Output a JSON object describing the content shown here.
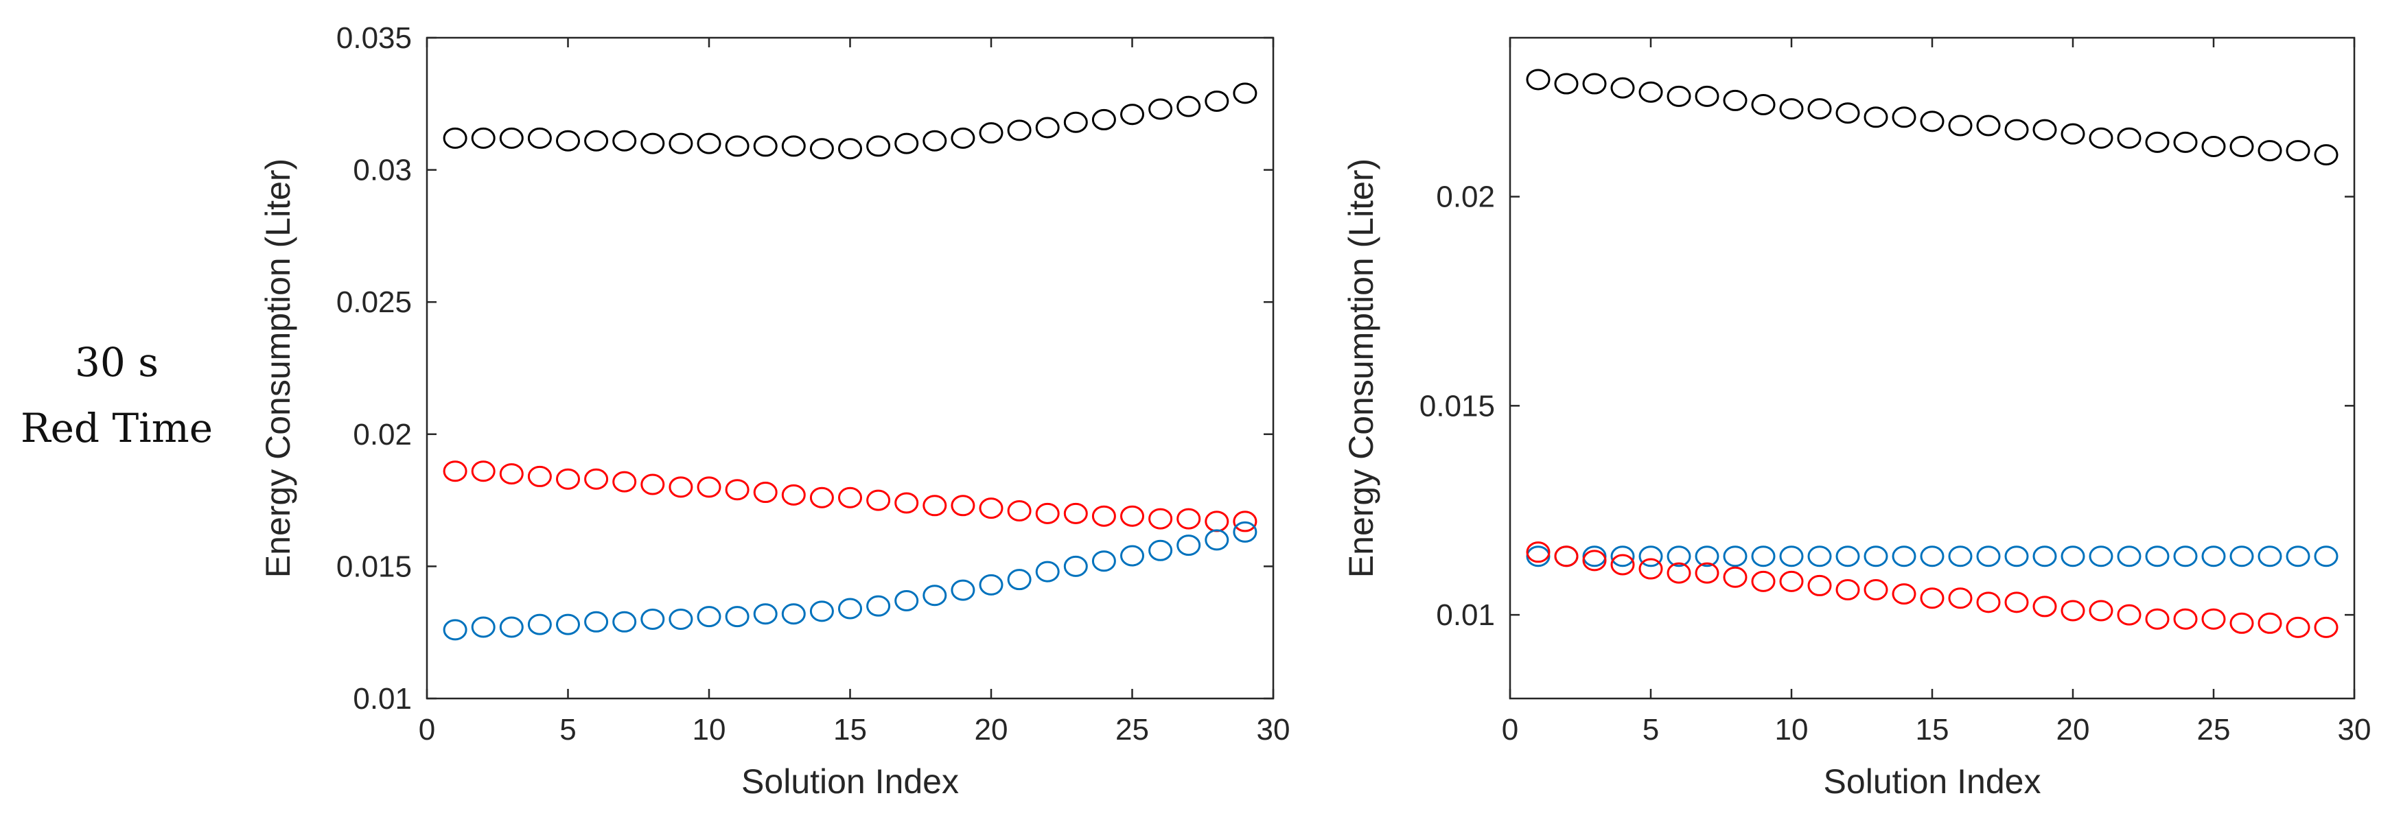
{
  "row_label": {
    "line1": "30 s",
    "line2": "Red Time"
  },
  "colors": {
    "black_series": "#000000",
    "red_series": "#ff0000",
    "blue_series": "#0072bd",
    "axis": "#262626"
  },
  "chart_data": [
    {
      "type": "scatter",
      "title": "",
      "xlabel": "Solution Index",
      "ylabel": "Energy Consumption (Liter)",
      "xlim": [
        0,
        30
      ],
      "ylim": [
        0.01,
        0.035
      ],
      "xticks": [
        0,
        5,
        10,
        15,
        20,
        25,
        30
      ],
      "yticks": [
        0.01,
        0.015,
        0.02,
        0.025,
        0.03,
        0.035
      ],
      "ytick_labels": [
        "0.01",
        "0.015",
        "0.02",
        "0.025",
        "0.03",
        "0.035"
      ],
      "marker": "open-circle",
      "x": [
        1,
        2,
        3,
        4,
        5,
        6,
        7,
        8,
        9,
        10,
        11,
        12,
        13,
        14,
        15,
        16,
        17,
        18,
        19,
        20,
        21,
        22,
        23,
        24,
        25,
        26,
        27,
        28,
        29
      ],
      "series": [
        {
          "name": "black",
          "color": "#000000",
          "values": [
            0.0312,
            0.0312,
            0.0312,
            0.0312,
            0.0311,
            0.0311,
            0.0311,
            0.031,
            0.031,
            0.031,
            0.0309,
            0.0309,
            0.0309,
            0.0308,
            0.0308,
            0.0309,
            0.031,
            0.0311,
            0.0312,
            0.0314,
            0.0315,
            0.0316,
            0.0318,
            0.0319,
            0.0321,
            0.0323,
            0.0324,
            0.0326,
            0.0329
          ]
        },
        {
          "name": "red",
          "color": "#ff0000",
          "values": [
            0.0186,
            0.0186,
            0.0185,
            0.0184,
            0.0183,
            0.0183,
            0.0182,
            0.0181,
            0.018,
            0.018,
            0.0179,
            0.0178,
            0.0177,
            0.0176,
            0.0176,
            0.0175,
            0.0174,
            0.0173,
            0.0173,
            0.0172,
            0.0171,
            0.017,
            0.017,
            0.0169,
            0.0169,
            0.0168,
            0.0168,
            0.0167,
            0.0167
          ]
        },
        {
          "name": "blue",
          "color": "#0072bd",
          "values": [
            0.0126,
            0.0127,
            0.0127,
            0.0128,
            0.0128,
            0.0129,
            0.0129,
            0.013,
            0.013,
            0.0131,
            0.0131,
            0.0132,
            0.0132,
            0.0133,
            0.0134,
            0.0135,
            0.0137,
            0.0139,
            0.0141,
            0.0143,
            0.0145,
            0.0148,
            0.015,
            0.0152,
            0.0154,
            0.0156,
            0.0158,
            0.016,
            0.0163
          ]
        }
      ]
    },
    {
      "type": "scatter",
      "title": "",
      "xlabel": "Solution Index",
      "ylabel": "Energy Consumption (Liter)",
      "xlim": [
        0,
        30
      ],
      "ylim": [
        0.008,
        0.0238
      ],
      "xticks": [
        0,
        5,
        10,
        15,
        20,
        25,
        30
      ],
      "yticks": [
        0.01,
        0.015,
        0.02
      ],
      "ytick_labels": [
        "0.01",
        "0.015",
        "0.02"
      ],
      "marker": "open-circle",
      "x": [
        1,
        2,
        3,
        4,
        5,
        6,
        7,
        8,
        9,
        10,
        11,
        12,
        13,
        14,
        15,
        16,
        17,
        18,
        19,
        20,
        21,
        22,
        23,
        24,
        25,
        26,
        27,
        28,
        29
      ],
      "series": [
        {
          "name": "black",
          "color": "#000000",
          "values": [
            0.0228,
            0.0227,
            0.0227,
            0.0226,
            0.0225,
            0.0224,
            0.0224,
            0.0223,
            0.0222,
            0.0221,
            0.0221,
            0.022,
            0.0219,
            0.0219,
            0.0218,
            0.0217,
            0.0217,
            0.0216,
            0.0216,
            0.0215,
            0.0214,
            0.0214,
            0.0213,
            0.0213,
            0.0212,
            0.0212,
            0.0211,
            0.0211,
            0.021
          ]
        },
        {
          "name": "blue",
          "color": "#0072bd",
          "values": [
            0.0114,
            0.0114,
            0.0114,
            0.0114,
            0.0114,
            0.0114,
            0.0114,
            0.0114,
            0.0114,
            0.0114,
            0.0114,
            0.0114,
            0.0114,
            0.0114,
            0.0114,
            0.0114,
            0.0114,
            0.0114,
            0.0114,
            0.0114,
            0.0114,
            0.0114,
            0.0114,
            0.0114,
            0.0114,
            0.0114,
            0.0114,
            0.0114,
            0.0114
          ]
        },
        {
          "name": "red",
          "color": "#ff0000",
          "values": [
            0.0115,
            0.0114,
            0.0113,
            0.0112,
            0.0111,
            0.011,
            0.011,
            0.0109,
            0.0108,
            0.0108,
            0.0107,
            0.0106,
            0.0106,
            0.0105,
            0.0104,
            0.0104,
            0.0103,
            0.0103,
            0.0102,
            0.0101,
            0.0101,
            0.01,
            0.0099,
            0.0099,
            0.0099,
            0.0098,
            0.0098,
            0.0097,
            0.0097
          ]
        }
      ]
    }
  ]
}
